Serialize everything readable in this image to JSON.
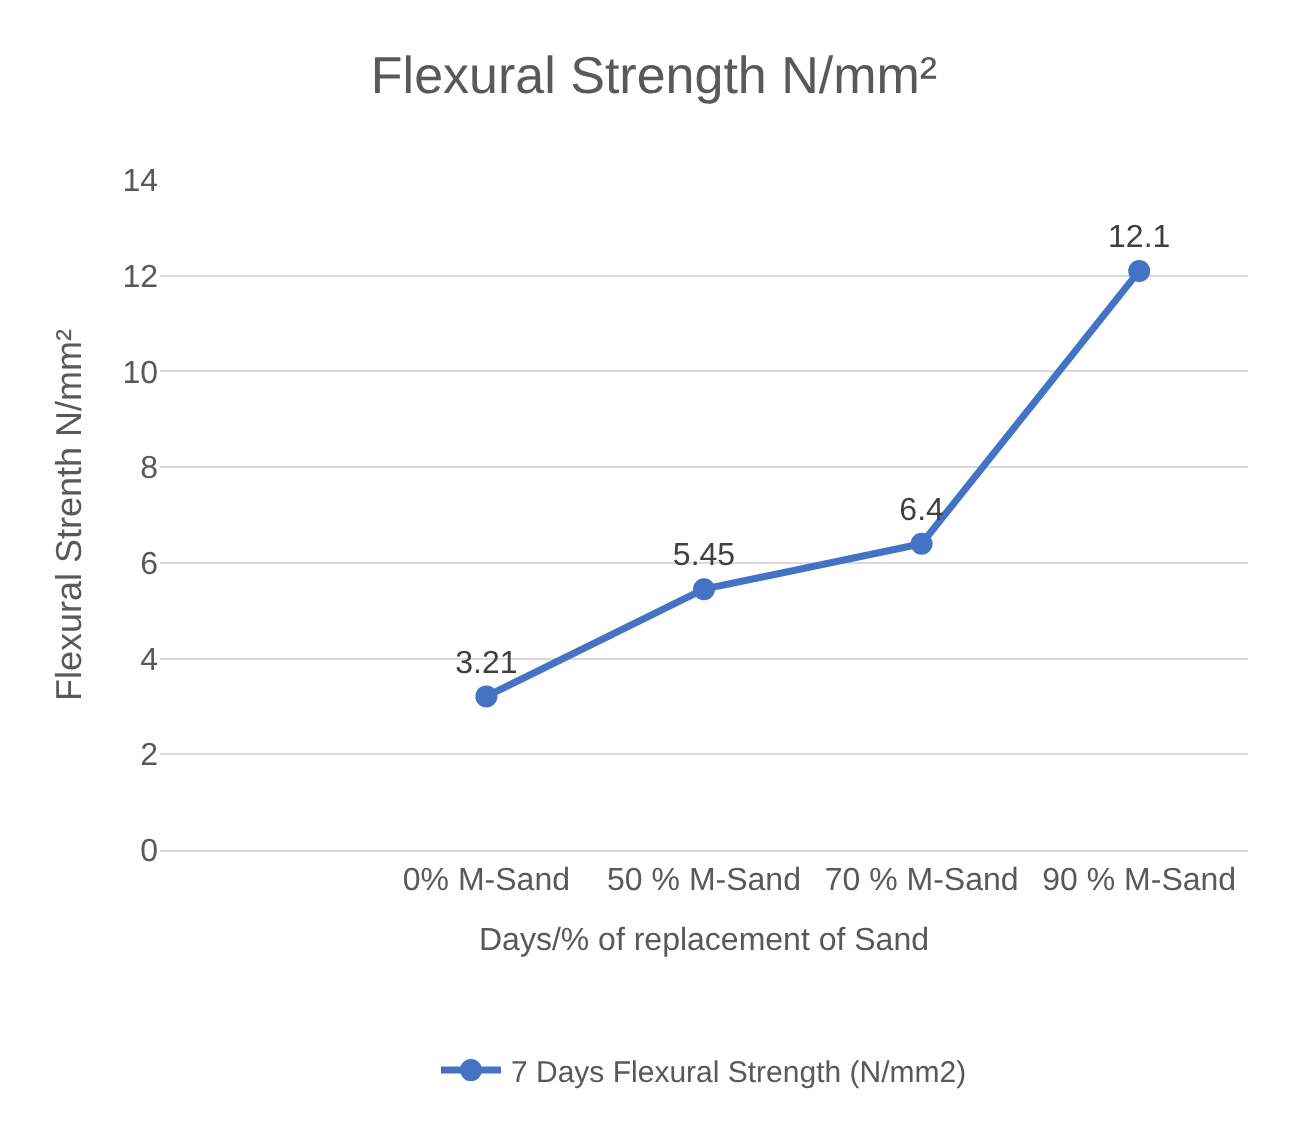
{
  "chart_data": {
    "type": "line",
    "title": "Flexural Strength N/mm²",
    "xlabel": "Days/% of replacement of Sand",
    "ylabel": "Flexural Strenth N/mm²",
    "categories": [
      null,
      "0% M-Sand",
      "50 % M-Sand",
      "70 % M-Sand",
      "90 % M-Sand"
    ],
    "series": [
      {
        "name": "7 Days Flexural Strength (N/mm2)",
        "color": "#4472c4",
        "values": [
          null,
          3.21,
          5.45,
          6.4,
          12.1
        ]
      }
    ],
    "ylim": [
      0,
      14
    ],
    "yticks": [
      0,
      2,
      4,
      6,
      8,
      10,
      12,
      14
    ],
    "grid": "y",
    "legend": "bottom",
    "marker": "circle",
    "line_style": "solid",
    "data_labels": true
  }
}
